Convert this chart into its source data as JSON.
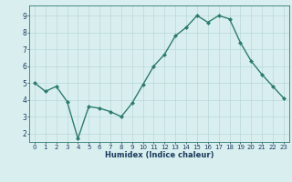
{
  "x": [
    0,
    1,
    2,
    3,
    4,
    5,
    6,
    7,
    8,
    9,
    10,
    11,
    12,
    13,
    14,
    15,
    16,
    17,
    18,
    19,
    20,
    21,
    22,
    23
  ],
  "y": [
    5.0,
    4.5,
    4.8,
    3.9,
    1.7,
    3.6,
    3.5,
    3.3,
    3.0,
    3.8,
    4.9,
    6.0,
    6.7,
    7.8,
    8.3,
    9.0,
    8.6,
    9.0,
    8.8,
    7.4,
    6.3,
    5.5,
    4.8,
    4.1
  ],
  "line_color": "#2d7b6f",
  "marker": "D",
  "marker_size": 2.0,
  "bg_color": "#d9efef",
  "grid_color": "#b8d8d8",
  "xlabel": "Humidex (Indice chaleur)",
  "ylim": [
    1.5,
    9.6
  ],
  "xlim": [
    -0.5,
    23.5
  ],
  "yticks": [
    2,
    3,
    4,
    5,
    6,
    7,
    8,
    9
  ],
  "xticks": [
    0,
    1,
    2,
    3,
    4,
    5,
    6,
    7,
    8,
    9,
    10,
    11,
    12,
    13,
    14,
    15,
    16,
    17,
    18,
    19,
    20,
    21,
    22,
    23
  ],
  "tick_color": "#1a3a5c",
  "linewidth": 1.0,
  "tick_fontsize": 5.0,
  "xlabel_fontsize": 6.0
}
